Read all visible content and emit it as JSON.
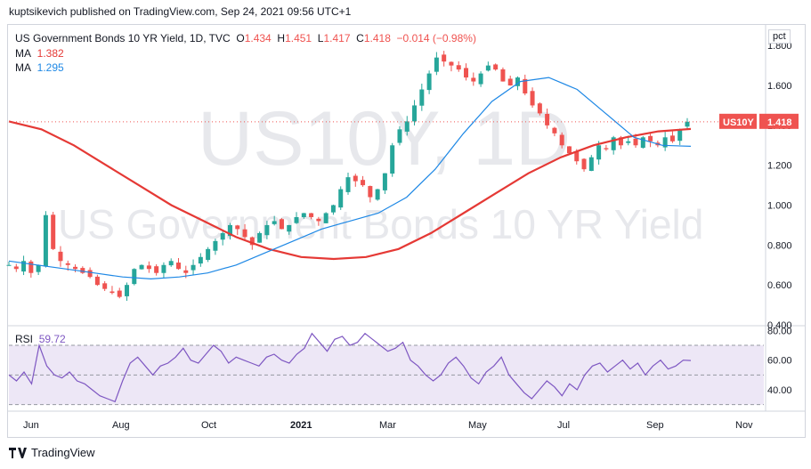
{
  "publisher_line": "kuptsikevich published on TradingView.com, Sep 24, 2021 09:56 UTC+1",
  "legend": {
    "title": "US Government Bonds 10 YR Yield, 1D, TVC",
    "o_label": "O",
    "o": "1.434",
    "h_label": "H",
    "h": "1.451",
    "l_label": "L",
    "l": "1.417",
    "c_label": "C",
    "c": "1.418",
    "change": "−0.014 (−0.98%)",
    "ma1_label": "MA",
    "ma1_value": "1.382",
    "ma2_label": "MA",
    "ma2_value": "1.295",
    "rsi_label": "RSI",
    "rsi_value": "59.72"
  },
  "watermark": {
    "symbol": "US10Y, 1D",
    "name": "US Government Bonds 10 YR Yield"
  },
  "price_tag": {
    "symbol": "US10Y",
    "value": "1.418"
  },
  "unit_label": "pct",
  "brand": "TradingView",
  "colors": {
    "up": "#26a69a",
    "down": "#ef5350",
    "ma_long": "#e53935",
    "ma_short": "#1e88e5",
    "rsi": "#7e57c2",
    "rsi_band": "#ede7f6"
  },
  "chart_data": [
    {
      "type": "candlestick",
      "title": "US Government Bonds 10 YR Yield, 1D, TVC",
      "ylabel": "pct",
      "ylim": [
        0.4,
        1.85
      ],
      "y_ticks": [
        "0.400",
        "0.600",
        "0.800",
        "1.000",
        "1.200",
        "1.400",
        "1.600",
        "1.800"
      ],
      "x_ticks": [
        "Jun",
        "Aug",
        "Oct",
        "2021",
        "Mar",
        "May",
        "Jul",
        "Sep",
        "Nov"
      ],
      "close_path": [
        0.7,
        0.68,
        0.72,
        0.66,
        0.7,
        0.95,
        0.78,
        0.72,
        0.7,
        0.68,
        0.66,
        0.64,
        0.6,
        0.58,
        0.56,
        0.54,
        0.6,
        0.68,
        0.7,
        0.68,
        0.66,
        0.7,
        0.72,
        0.68,
        0.66,
        0.7,
        0.74,
        0.78,
        0.82,
        0.86,
        0.9,
        0.88,
        0.84,
        0.8,
        0.86,
        0.9,
        0.92,
        0.88,
        0.9,
        0.94,
        0.96,
        0.94,
        0.92,
        0.96,
        1.0,
        1.08,
        1.14,
        1.12,
        1.1,
        1.04,
        1.08,
        1.16,
        1.3,
        1.38,
        1.42,
        1.5,
        1.58,
        1.66,
        1.74,
        1.72,
        1.7,
        1.68,
        1.64,
        1.62,
        1.66,
        1.7,
        1.68,
        1.62,
        1.6,
        1.64,
        1.56,
        1.5,
        1.46,
        1.4,
        1.36,
        1.3,
        1.26,
        1.22,
        1.18,
        1.24,
        1.3,
        1.28,
        1.34,
        1.3,
        1.32,
        1.3,
        1.34,
        1.32,
        1.3,
        1.34,
        1.32,
        1.38,
        1.418
      ],
      "series": [
        {
          "name": "MA",
          "last": 1.382,
          "values": [
            1.42,
            1.38,
            1.3,
            1.2,
            1.1,
            1.0,
            0.92,
            0.84,
            0.78,
            0.74,
            0.73,
            0.74,
            0.78,
            0.86,
            0.96,
            1.06,
            1.16,
            1.24,
            1.3,
            1.34,
            1.37,
            1.382
          ]
        },
        {
          "name": "MA",
          "last": 1.295,
          "values": [
            0.72,
            0.7,
            0.68,
            0.66,
            0.64,
            0.63,
            0.64,
            0.66,
            0.7,
            0.76,
            0.82,
            0.88,
            0.92,
            0.96,
            1.04,
            1.18,
            1.36,
            1.52,
            1.62,
            1.64,
            1.58,
            1.46,
            1.34,
            1.3,
            1.295
          ]
        }
      ]
    },
    {
      "type": "line",
      "title": "RSI",
      "ylim": [
        28,
        82
      ],
      "y_ticks": [
        "80.00",
        "60.00",
        "40.00"
      ],
      "band": [
        30,
        70
      ],
      "last": 59.72,
      "values": [
        50,
        46,
        52,
        44,
        70,
        56,
        50,
        48,
        52,
        46,
        44,
        40,
        36,
        34,
        32,
        46,
        58,
        62,
        56,
        50,
        56,
        58,
        62,
        68,
        60,
        58,
        64,
        70,
        66,
        58,
        62,
        60,
        58,
        56,
        62,
        64,
        60,
        58,
        64,
        68,
        78,
        72,
        66,
        74,
        76,
        70,
        72,
        78,
        74,
        70,
        66,
        68,
        72,
        60,
        56,
        50,
        46,
        50,
        58,
        62,
        56,
        48,
        44,
        52,
        56,
        62,
        50,
        44,
        38,
        34,
        40,
        46,
        42,
        36,
        44,
        40,
        50,
        56,
        58,
        52,
        56,
        60,
        54,
        58,
        50,
        56,
        60,
        54,
        56,
        60,
        59.72
      ]
    }
  ]
}
